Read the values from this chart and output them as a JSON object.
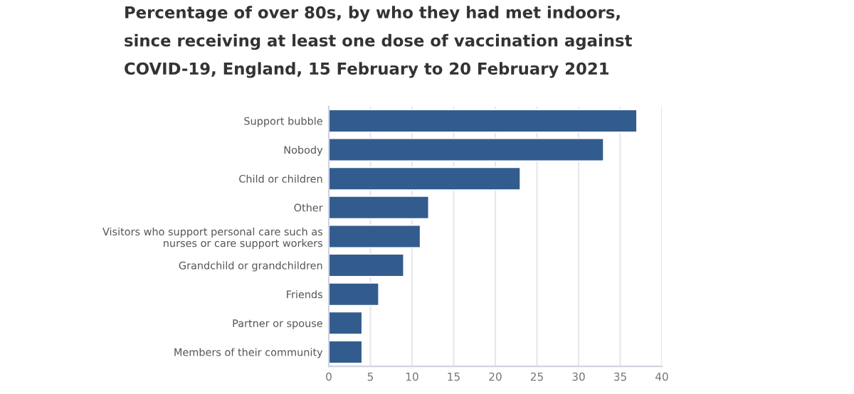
{
  "chart_data": {
    "type": "bar",
    "orientation": "horizontal",
    "title": "Percentage of over 80s, by who they had met indoors,\nsince receiving at least one dose of vaccination against\nCOVID-19, England, 15 February to 20 February 2021",
    "categories": [
      "Support bubble",
      "Nobody",
      "Child or children",
      "Other",
      "Visitors who support personal care such as\nnurses or care support workers",
      "Grandchild or grandchildren",
      "Friends",
      "Partner or spouse",
      "Members of their community"
    ],
    "values": [
      37,
      33,
      23,
      12,
      11,
      9,
      6,
      4,
      4
    ],
    "color": "#335c8e",
    "xlim": [
      0,
      40
    ],
    "xticks": [
      0,
      5,
      10,
      15,
      20,
      25,
      30,
      35,
      40
    ],
    "grid": "x"
  }
}
